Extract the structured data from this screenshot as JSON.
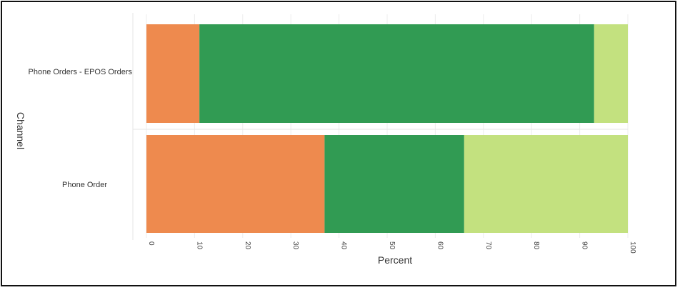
{
  "chart_data": {
    "type": "bar",
    "orientation": "horizontal",
    "stacked": true,
    "xlabel": "Percent",
    "ylabel": "Channel",
    "xlim": [
      0,
      100
    ],
    "xticks": [
      0,
      10,
      20,
      30,
      40,
      50,
      60,
      70,
      80,
      90,
      100
    ],
    "categories": [
      "Phone Orders - EPOS Orders",
      "Phone Order"
    ],
    "series": [
      {
        "color": "#EE8A4E",
        "values": [
          11,
          37
        ]
      },
      {
        "color": "#319B53",
        "values": [
          82,
          29
        ]
      },
      {
        "color": "#C3E17F",
        "values": [
          7,
          34
        ]
      }
    ],
    "grid": true
  }
}
